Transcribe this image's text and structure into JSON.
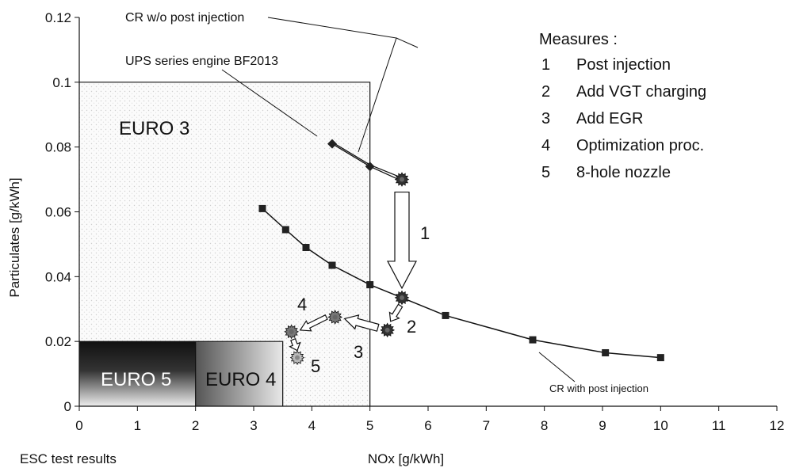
{
  "chart_data": {
    "type": "line",
    "title": "",
    "xlabel": "NOx [g/kWh]",
    "ylabel": "Particulates [g/kWh]",
    "xlim": [
      0,
      12
    ],
    "ylim": [
      0,
      0.12
    ],
    "xticks": [
      "0",
      "1",
      "2",
      "3",
      "4",
      "5",
      "6",
      "7",
      "8",
      "9",
      "10",
      "11",
      "12"
    ],
    "yticks": [
      "0",
      "0.02",
      "0.04",
      "0.06",
      "0.08",
      "0.1",
      "0.12"
    ],
    "corner_label": "ESC test results",
    "grid": false,
    "series": [
      {
        "name": "CR with post injection",
        "marker": "square",
        "x": [
          3.15,
          3.55,
          3.9,
          4.35,
          5.0,
          5.55,
          6.3,
          7.8,
          9.05,
          10.0
        ],
        "y": [
          0.061,
          0.0545,
          0.049,
          0.0435,
          0.0375,
          0.0335,
          0.028,
          0.0205,
          0.0165,
          0.015
        ]
      },
      {
        "name": "CR w/o post injection",
        "marker": "diamond",
        "x": [
          4.35,
          5.0,
          5.55
        ],
        "y": [
          0.081,
          0.074,
          0.07
        ]
      },
      {
        "name": "UPS series engine BF2013",
        "marker": "star",
        "x": [
          4.35,
          5.0,
          5.55
        ],
        "y": [
          0.0815,
          0.0745,
          0.07
        ]
      }
    ],
    "measure_points": [
      {
        "label": "",
        "x": 5.55,
        "y": 0.07,
        "style": "star-dark"
      },
      {
        "label": "1",
        "x": 5.55,
        "y": 0.0335,
        "style": "star-dark"
      },
      {
        "label": "2",
        "x": 5.3,
        "y": 0.0235,
        "style": "star-dark"
      },
      {
        "label": "3",
        "x": 4.4,
        "y": 0.0275,
        "style": "star-grey"
      },
      {
        "label": "4",
        "x": 3.65,
        "y": 0.023,
        "style": "star-grey"
      },
      {
        "label": "5",
        "x": 3.75,
        "y": 0.015,
        "style": "star-light"
      }
    ],
    "limit_regions": [
      {
        "label": "EURO 3",
        "nox": 5.0,
        "pm": 0.1
      },
      {
        "label": "EURO 4",
        "nox": 3.5,
        "pm": 0.02
      },
      {
        "label": "EURO 5",
        "nox": 2.0,
        "pm": 0.02
      }
    ],
    "annotations": [
      {
        "text": "CR w/o post injection"
      },
      {
        "text": "UPS series engine BF2013"
      },
      {
        "text": "CR with post injection"
      }
    ],
    "legend": {
      "title": "Measures :",
      "placement": "top-right",
      "items": [
        {
          "num": "1",
          "text": "Post injection"
        },
        {
          "num": "2",
          "text": "Add VGT charging"
        },
        {
          "num": "3",
          "text": "Add EGR"
        },
        {
          "num": "4",
          "text": "Optimization proc."
        },
        {
          "num": "5",
          "text": "8-hole nozzle"
        }
      ]
    }
  }
}
